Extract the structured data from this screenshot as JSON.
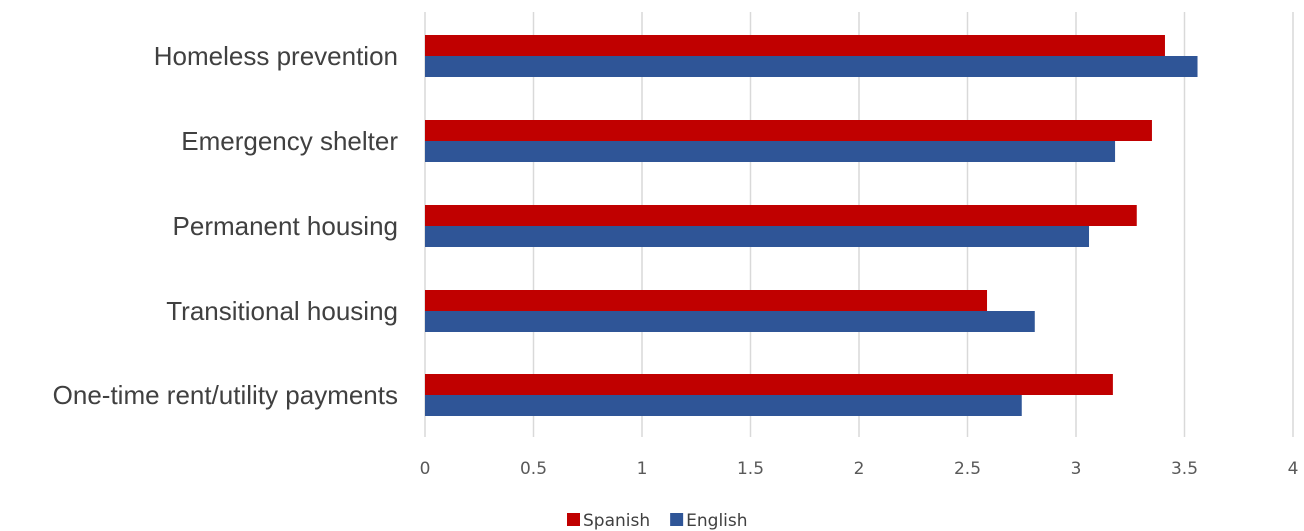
{
  "chart_data": {
    "type": "bar",
    "orientation": "horizontal",
    "categories": [
      "Homeless prevention",
      "Emergency shelter",
      "Permanent housing",
      "Transitional housing",
      "One-time rent/utility payments"
    ],
    "series": [
      {
        "name": "Spanish",
        "color": "#c00000",
        "values": [
          3.41,
          3.35,
          3.28,
          2.59,
          3.17
        ]
      },
      {
        "name": "English",
        "color": "#2f5597",
        "values": [
          3.56,
          3.18,
          3.06,
          2.81,
          2.75
        ]
      }
    ],
    "xlim": [
      0,
      4
    ],
    "xticks": [
      "0",
      "0.5",
      "1",
      "1.5",
      "2",
      "2.5",
      "3",
      "3.5",
      "4"
    ],
    "grid": "vertical",
    "legend": "bottom-center"
  }
}
